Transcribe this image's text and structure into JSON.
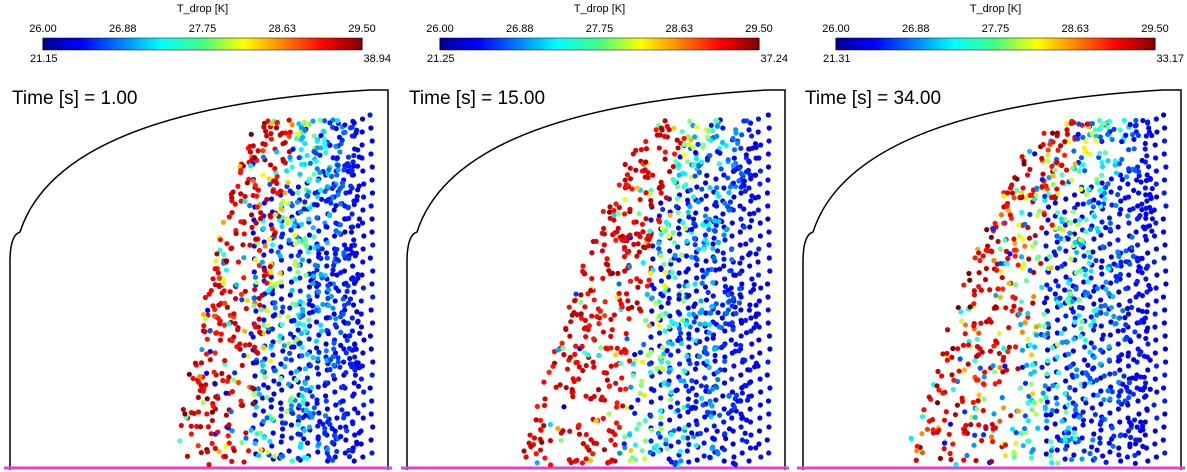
{
  "panels": [
    {
      "colorbar": {
        "title": "T_drop [K]",
        "ticks": [
          "26.00",
          "26.88",
          "27.75",
          "28.63",
          "29.50"
        ],
        "min": "21.15",
        "max": "38.94"
      },
      "time_label": "Time [s] = 1.00"
    },
    {
      "colorbar": {
        "title": "T_drop [K]",
        "ticks": [
          "26.00",
          "26.88",
          "27.75",
          "28.63",
          "29.50"
        ],
        "min": "21.25",
        "max": "37.24"
      },
      "time_label": "Time [s] = 15.00"
    },
    {
      "colorbar": {
        "title": "T_drop [K]",
        "ticks": [
          "26.00",
          "26.88",
          "27.75",
          "28.63",
          "29.50"
        ],
        "min": "21.31",
        "max": "33.17"
      },
      "time_label": "Time [s] = 34.00"
    }
  ]
}
